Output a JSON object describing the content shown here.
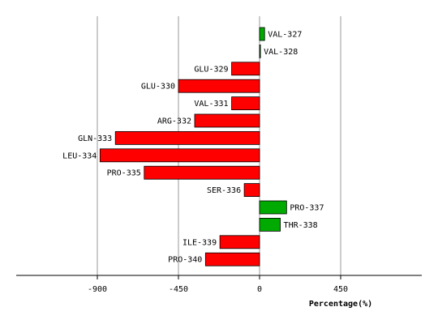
{
  "chart_data": {
    "type": "bar",
    "orientation": "horizontal",
    "categories": [
      "VAL-327",
      "VAL-328",
      "GLU-329",
      "GLU-330",
      "VAL-331",
      "ARG-332",
      "GLN-333",
      "LEU-334",
      "PRO-335",
      "SER-336",
      "PRO-337",
      "THR-338",
      "ILE-339",
      "PRO-340"
    ],
    "values": [
      28,
      5,
      -155,
      -450,
      -155,
      -360,
      -800,
      -885,
      -640,
      -85,
      150,
      115,
      -220,
      -300
    ],
    "xlabel": "Percentage(%)",
    "ylabel": "",
    "title": "",
    "xlim": [
      -1350,
      900
    ],
    "xticks": [
      -900,
      -450,
      0,
      450
    ],
    "grid": true,
    "legend": "none",
    "colors": {
      "positive": "#00aa00",
      "negative": "#ff0000",
      "grid": "#999999",
      "outline": "#000000"
    }
  }
}
